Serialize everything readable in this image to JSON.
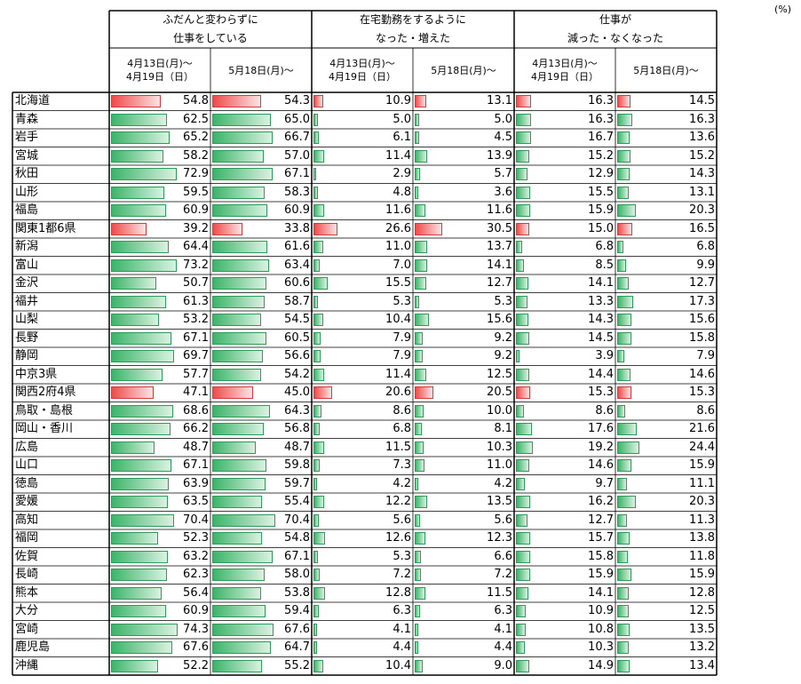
{
  "unit_label": "(%)",
  "chart_data": {
    "type": "table",
    "groups": [
      {
        "title_lines": [
          "ふだんと変わらずに",
          "仕事をしている"
        ]
      },
      {
        "title_lines": [
          "在宅勤務をするように",
          "なった・増えた"
        ]
      },
      {
        "title_lines": [
          "仕事が",
          "減った・なくなった"
        ]
      }
    ],
    "period_labels": [
      [
        "4月13日(月)～",
        "4月19日（日）"
      ],
      [
        "5月18日(月)～"
      ]
    ],
    "columns": [
      {
        "group": 0,
        "period": 0
      },
      {
        "group": 0,
        "period": 1
      },
      {
        "group": 1,
        "period": 0
      },
      {
        "group": 1,
        "period": 1
      },
      {
        "group": 2,
        "period": 0
      },
      {
        "group": 2,
        "period": 1
      }
    ],
    "highlighted_rows": [
      "北海道",
      "関東1都6県",
      "関西2府4県"
    ],
    "colors": {
      "normal_bar": "#3cb46a",
      "highlight_bar": "#f04a4a"
    },
    "rows": [
      {
        "region": "北海道",
        "values": [
          54.8,
          54.3,
          10.9,
          13.1,
          16.3,
          14.5
        ]
      },
      {
        "region": "青森",
        "values": [
          62.5,
          65.0,
          5.0,
          5.0,
          16.3,
          16.3
        ]
      },
      {
        "region": "岩手",
        "values": [
          65.2,
          66.7,
          6.1,
          4.5,
          16.7,
          13.6
        ]
      },
      {
        "region": "宮城",
        "values": [
          58.2,
          57.0,
          11.4,
          13.9,
          15.2,
          15.2
        ]
      },
      {
        "region": "秋田",
        "values": [
          72.9,
          67.1,
          2.9,
          5.7,
          12.9,
          14.3
        ]
      },
      {
        "region": "山形",
        "values": [
          59.5,
          58.3,
          4.8,
          3.6,
          15.5,
          13.1
        ]
      },
      {
        "region": "福島",
        "values": [
          60.9,
          60.9,
          11.6,
          11.6,
          15.9,
          20.3
        ]
      },
      {
        "region": "関東1都6県",
        "values": [
          39.2,
          33.8,
          26.6,
          30.5,
          15.0,
          16.5
        ]
      },
      {
        "region": "新潟",
        "values": [
          64.4,
          61.6,
          11.0,
          13.7,
          6.8,
          6.8
        ]
      },
      {
        "region": "富山",
        "values": [
          73.2,
          63.4,
          7.0,
          14.1,
          8.5,
          9.9
        ]
      },
      {
        "region": "金沢",
        "values": [
          50.7,
          60.6,
          15.5,
          12.7,
          14.1,
          12.7
        ]
      },
      {
        "region": "福井",
        "values": [
          61.3,
          58.7,
          5.3,
          5.3,
          13.3,
          17.3
        ]
      },
      {
        "region": "山梨",
        "values": [
          53.2,
          54.5,
          10.4,
          15.6,
          14.3,
          15.6
        ]
      },
      {
        "region": "長野",
        "values": [
          67.1,
          60.5,
          7.9,
          9.2,
          14.5,
          15.8
        ]
      },
      {
        "region": "静岡",
        "values": [
          69.7,
          56.6,
          7.9,
          9.2,
          3.9,
          7.9
        ]
      },
      {
        "region": "中京3県",
        "values": [
          57.7,
          54.2,
          11.4,
          12.5,
          14.4,
          14.6
        ]
      },
      {
        "region": "関西2府4県",
        "values": [
          47.1,
          45.0,
          20.6,
          20.5,
          15.3,
          15.3
        ]
      },
      {
        "region": "鳥取・島根",
        "values": [
          68.6,
          64.3,
          8.6,
          10.0,
          8.6,
          8.6
        ]
      },
      {
        "region": "岡山・香川",
        "values": [
          66.2,
          56.8,
          6.8,
          8.1,
          17.6,
          21.6
        ]
      },
      {
        "region": "広島",
        "values": [
          48.7,
          48.7,
          11.5,
          10.3,
          19.2,
          24.4
        ]
      },
      {
        "region": "山口",
        "values": [
          67.1,
          59.8,
          7.3,
          11.0,
          14.6,
          15.9
        ]
      },
      {
        "region": "徳島",
        "values": [
          63.9,
          59.7,
          4.2,
          4.2,
          9.7,
          11.1
        ]
      },
      {
        "region": "愛媛",
        "values": [
          63.5,
          55.4,
          12.2,
          13.5,
          16.2,
          20.3
        ]
      },
      {
        "region": "高知",
        "values": [
          70.4,
          70.4,
          5.6,
          5.6,
          12.7,
          11.3
        ]
      },
      {
        "region": "福岡",
        "values": [
          52.3,
          54.8,
          12.6,
          12.3,
          15.7,
          13.8
        ]
      },
      {
        "region": "佐賀",
        "values": [
          63.2,
          67.1,
          5.3,
          6.6,
          15.8,
          11.8
        ]
      },
      {
        "region": "長崎",
        "values": [
          62.3,
          58.0,
          7.2,
          7.2,
          15.9,
          15.9
        ]
      },
      {
        "region": "熊本",
        "values": [
          56.4,
          53.8,
          12.8,
          11.5,
          14.1,
          12.8
        ]
      },
      {
        "region": "大分",
        "values": [
          60.9,
          59.4,
          6.3,
          6.3,
          10.9,
          12.5
        ]
      },
      {
        "region": "宮崎",
        "values": [
          74.3,
          67.6,
          4.1,
          4.1,
          10.8,
          13.5
        ]
      },
      {
        "region": "鹿児島",
        "values": [
          67.6,
          64.7,
          4.4,
          4.4,
          10.3,
          13.2
        ]
      },
      {
        "region": "沖縄",
        "values": [
          52.2,
          55.2,
          10.4,
          9.0,
          14.9,
          13.4
        ]
      }
    ]
  }
}
